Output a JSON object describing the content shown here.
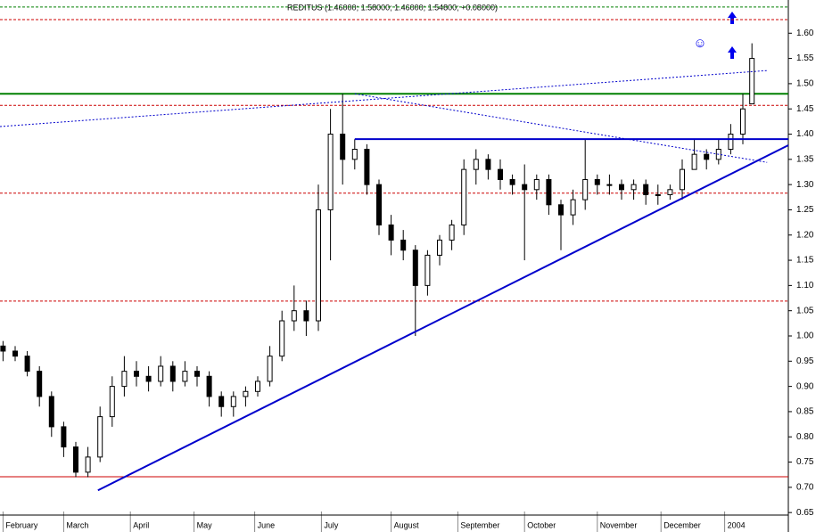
{
  "chart_data": {
    "type": "candlestick",
    "title": "REDITUS (1.46000; 1.58000; 1.46000; 1.54800; +0.08000)",
    "x": [
      1,
      5,
      9,
      13,
      17,
      21,
      25,
      29,
      33,
      37,
      41,
      45,
      49,
      53,
      57,
      61,
      65,
      69,
      73,
      77,
      81,
      85,
      89,
      93,
      97,
      101,
      105,
      109,
      113,
      117,
      121,
      125,
      129,
      133,
      137,
      141,
      145,
      149,
      153,
      157,
      161,
      165,
      169,
      173,
      177,
      181,
      185,
      189,
      193,
      197,
      201,
      205,
      209,
      213,
      217,
      221,
      225,
      229,
      233,
      237,
      241,
      245,
      248
    ],
    "open": [
      0.98,
      0.97,
      0.96,
      0.93,
      0.88,
      0.82,
      0.78,
      0.73,
      0.76,
      0.84,
      0.9,
      0.93,
      0.92,
      0.91,
      0.94,
      0.91,
      0.93,
      0.92,
      0.88,
      0.86,
      0.88,
      0.89,
      0.91,
      0.96,
      1.03,
      1.05,
      1.03,
      1.25,
      1.4,
      1.35,
      1.37,
      1.3,
      1.22,
      1.19,
      1.17,
      1.1,
      1.16,
      1.19,
      1.22,
      1.33,
      1.35,
      1.33,
      1.31,
      1.3,
      1.29,
      1.31,
      1.26,
      1.24,
      1.27,
      1.31,
      1.3,
      1.3,
      1.29,
      1.3,
      1.28,
      1.28,
      1.29,
      1.33,
      1.36,
      1.35,
      1.37,
      1.4,
      1.46
    ],
    "high": [
      0.99,
      0.98,
      0.97,
      0.94,
      0.89,
      0.83,
      0.79,
      0.78,
      0.86,
      0.92,
      0.96,
      0.95,
      0.94,
      0.96,
      0.95,
      0.95,
      0.94,
      0.93,
      0.89,
      0.89,
      0.9,
      0.92,
      0.98,
      1.05,
      1.1,
      1.07,
      1.3,
      1.45,
      1.48,
      1.39,
      1.38,
      1.31,
      1.24,
      1.21,
      1.18,
      1.17,
      1.2,
      1.23,
      1.35,
      1.37,
      1.36,
      1.35,
      1.32,
      1.34,
      1.32,
      1.32,
      1.27,
      1.29,
      1.39,
      1.32,
      1.32,
      1.31,
      1.31,
      1.31,
      1.3,
      1.3,
      1.35,
      1.39,
      1.37,
      1.39,
      1.42,
      1.48,
      1.58
    ],
    "low": [
      0.95,
      0.95,
      0.92,
      0.86,
      0.8,
      0.76,
      0.72,
      0.72,
      0.75,
      0.82,
      0.88,
      0.9,
      0.89,
      0.9,
      0.89,
      0.9,
      0.9,
      0.86,
      0.84,
      0.84,
      0.86,
      0.88,
      0.9,
      0.95,
      1.01,
      1.0,
      1.01,
      1.15,
      1.3,
      1.33,
      1.28,
      1.2,
      1.16,
      1.15,
      1.0,
      1.08,
      1.14,
      1.17,
      1.2,
      1.3,
      1.31,
      1.29,
      1.28,
      1.15,
      1.27,
      1.24,
      1.17,
      1.22,
      1.25,
      1.28,
      1.28,
      1.27,
      1.27,
      1.26,
      1.26,
      1.27,
      1.27,
      1.33,
      1.33,
      1.34,
      1.36,
      1.38,
      1.46
    ],
    "close": [
      0.97,
      0.96,
      0.93,
      0.88,
      0.82,
      0.78,
      0.73,
      0.76,
      0.84,
      0.9,
      0.93,
      0.92,
      0.91,
      0.94,
      0.91,
      0.93,
      0.92,
      0.88,
      0.86,
      0.88,
      0.89,
      0.91,
      0.96,
      1.03,
      1.05,
      1.03,
      1.25,
      1.4,
      1.35,
      1.37,
      1.3,
      1.22,
      1.19,
      1.17,
      1.1,
      1.16,
      1.19,
      1.22,
      1.33,
      1.35,
      1.33,
      1.31,
      1.3,
      1.29,
      1.31,
      1.26,
      1.24,
      1.27,
      1.31,
      1.3,
      1.3,
      1.29,
      1.3,
      1.28,
      1.28,
      1.29,
      1.33,
      1.36,
      1.35,
      1.37,
      1.4,
      1.45,
      1.55
    ],
    "xlim": [
      0,
      260
    ],
    "ylim": [
      0.645,
      1.657
    ],
    "xticks": [
      {
        "value": 1,
        "label": "February"
      },
      {
        "value": 21,
        "label": "March"
      },
      {
        "value": 43,
        "label": "April"
      },
      {
        "value": 64,
        "label": "May"
      },
      {
        "value": 84,
        "label": "June"
      },
      {
        "value": 106,
        "label": "July"
      },
      {
        "value": 129,
        "label": "August"
      },
      {
        "value": 151,
        "label": "September"
      },
      {
        "value": 173,
        "label": "October"
      },
      {
        "value": 197,
        "label": "November"
      },
      {
        "value": 218,
        "label": "December"
      },
      {
        "value": 239,
        "label": "2004"
      }
    ],
    "yticks": [
      {
        "value": 0.65,
        "label": "0.65"
      },
      {
        "value": 0.7,
        "label": "0.70"
      },
      {
        "value": 0.75,
        "label": "0.75"
      },
      {
        "value": 0.8,
        "label": "0.80"
      },
      {
        "value": 0.85,
        "label": "0.85"
      },
      {
        "value": 0.9,
        "label": "0.90"
      },
      {
        "value": 0.95,
        "label": "0.95"
      },
      {
        "value": 1.0,
        "label": "1.00"
      },
      {
        "value": 1.05,
        "label": "1.05"
      },
      {
        "value": 1.1,
        "label": "1.10"
      },
      {
        "value": 1.15,
        "label": "1.15"
      },
      {
        "value": 1.2,
        "label": "1.20"
      },
      {
        "value": 1.25,
        "label": "1.25"
      },
      {
        "value": 1.3,
        "label": "1.30"
      },
      {
        "value": 1.35,
        "label": "1.35"
      },
      {
        "value": 1.4,
        "label": "1.40"
      },
      {
        "value": 1.45,
        "label": "1.45"
      },
      {
        "value": 1.5,
        "label": "1.50"
      },
      {
        "value": 1.55,
        "label": "1.55"
      },
      {
        "value": 1.6,
        "label": "1.60"
      }
    ],
    "up_color": "#ffffff",
    "down_color": "#000000",
    "hlines": [
      {
        "value": 1.652,
        "color": "#008000",
        "style": "dashed"
      },
      {
        "value": 1.627,
        "color": "#cc0000",
        "style": "dashed"
      },
      {
        "value": 1.48,
        "color": "#008000",
        "style": "solid"
      },
      {
        "value": 1.457,
        "color": "#cc0000",
        "style": "dashed"
      },
      {
        "value": 1.283,
        "color": "#cc0000",
        "style": "dashed"
      },
      {
        "value": 1.069,
        "color": "#cc0000",
        "style": "dashed"
      },
      {
        "value": 0.721,
        "color": "#cc0000",
        "style": "solid"
      }
    ],
    "trendlines": [
      {
        "x": [
          32.3,
          260
        ],
        "y": [
          0.694,
          1.378
        ],
        "color": "#0000cc",
        "style": "solid"
      },
      {
        "x": [
          117,
          260
        ],
        "y": [
          1.39,
          1.39
        ],
        "color": "#0000cc",
        "style": "solid"
      },
      {
        "x": [
          0,
          253
        ],
        "y": [
          1.415,
          1.526
        ],
        "color": "#0000cc",
        "style": "dotted"
      },
      {
        "x": [
          117,
          253
        ],
        "y": [
          1.48,
          1.344
        ],
        "color": "#0000cc",
        "style": "dotted"
      }
    ]
  }
}
